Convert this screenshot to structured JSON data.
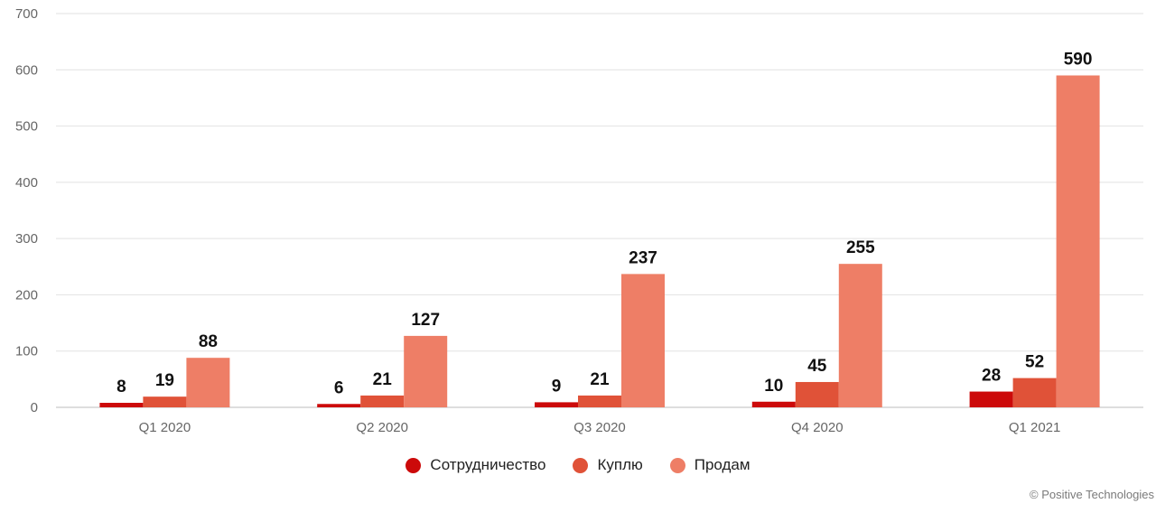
{
  "chart_data": {
    "type": "bar",
    "categories": [
      "Q1 2020",
      "Q2 2020",
      "Q3 2020",
      "Q4 2020",
      "Q1 2021"
    ],
    "series": [
      {
        "name": "Сотрудничество",
        "color": "#cc0a0a",
        "values": [
          8,
          6,
          9,
          10,
          28
        ]
      },
      {
        "name": "Куплю",
        "color": "#e05238",
        "values": [
          19,
          21,
          21,
          45,
          52
        ]
      },
      {
        "name": "Продам",
        "color": "#ee7e66",
        "values": [
          88,
          127,
          237,
          255,
          590
        ]
      }
    ],
    "ylim": [
      0,
      700
    ],
    "yticks": [
      0,
      100,
      200,
      300,
      400,
      500,
      600,
      700
    ],
    "grid": true,
    "legend": "bottom-center",
    "title": "",
    "xlabel": "",
    "ylabel": ""
  },
  "credit": "© Positive Technologies"
}
